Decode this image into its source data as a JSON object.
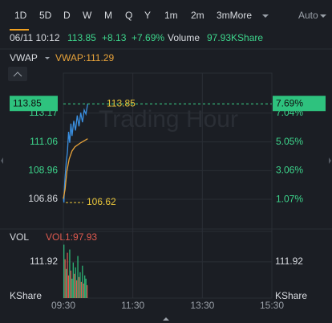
{
  "tabs": [
    "1D",
    "5D",
    "D",
    "W",
    "M",
    "Q",
    "Y",
    "1m",
    "2m",
    "3mMore"
  ],
  "auto": "Auto",
  "quote": {
    "time": "06/11 10:12",
    "price": "113.85",
    "change": "+8.13",
    "change_pct": "+7.69%",
    "volume_label": "Volume",
    "volume": "97.93KShare"
  },
  "price_chart": {
    "type": "line",
    "indicator": "VWAP",
    "vwap_label": "VWAP:111.29",
    "watermark": "Trading Hour",
    "xlim": [
      0,
      360
    ],
    "ylim": [
      104.8,
      116.1
    ],
    "yticks": [
      113.17,
      111.06,
      108.96,
      106.86
    ],
    "y2lim": [
      -0.87,
      9.82
    ],
    "y2ticks": [
      {
        "value": 7.04,
        "label": "7.04%"
      },
      {
        "value": 5.05,
        "label": "5.05%"
      },
      {
        "value": 3.06,
        "label": "3.06%"
      },
      {
        "value": 1.07,
        "label": "1.07%"
      }
    ],
    "last": {
      "value": 113.85,
      "pct": {
        "value": 7.69,
        "label": "7.69%"
      }
    },
    "low": 106.62,
    "series": [
      {
        "name": "Price",
        "color": "#3a8fe0",
        "x": [
          0,
          1,
          2,
          3,
          5,
          7,
          9,
          11,
          13,
          15,
          18,
          21,
          24,
          27,
          30,
          33,
          36,
          39,
          42
        ],
        "values": [
          107.0,
          106.62,
          107.8,
          108.5,
          109.6,
          110.3,
          111.8,
          111.0,
          112.4,
          111.5,
          112.6,
          111.9,
          113.0,
          112.2,
          113.2,
          112.5,
          113.4,
          113.1,
          113.85
        ]
      },
      {
        "name": "VWAP",
        "color": "#e8a33a",
        "x": [
          0,
          3,
          6,
          10,
          15,
          20,
          30,
          42
        ],
        "values": [
          106.9,
          107.6,
          108.9,
          109.8,
          110.4,
          110.7,
          111.0,
          111.29
        ]
      }
    ]
  },
  "volume_chart": {
    "type": "bar",
    "label": "VOL",
    "vol_label": "VOL1:97.93",
    "unit": "KShare",
    "ylim": [
      0,
      201
    ],
    "yticks": [
      111.92
    ],
    "x": [
      1,
      3,
      5,
      7,
      9,
      11,
      13,
      15,
      17,
      19,
      21,
      23,
      25,
      27,
      29,
      31,
      33,
      35,
      37,
      39,
      41
    ],
    "values": [
      165,
      120,
      90,
      140,
      70,
      150,
      85,
      60,
      110,
      75,
      95,
      55,
      130,
      65,
      80,
      50,
      100,
      45,
      70,
      60,
      40
    ],
    "colors": [
      "#2ec27e",
      "#e05a4f",
      "#2ec27e",
      "#e05a4f",
      "#e05a4f",
      "#2ec27e",
      "#e05a4f",
      "#2ec27e",
      "#2ec27e",
      "#e05a4f",
      "#2ec27e",
      "#e05a4f",
      "#2ec27e",
      "#e05a4f",
      "#2ec27e",
      "#e05a4f",
      "#2ec27e",
      "#e05a4f",
      "#2ec27e",
      "#2ec27e",
      "#e05a4f"
    ]
  },
  "xticks": [
    {
      "value": 0,
      "label": "09:30"
    },
    {
      "value": 120,
      "label": "11:30"
    },
    {
      "value": 240,
      "label": "13:30"
    },
    {
      "value": 360,
      "label": "15:30"
    }
  ]
}
